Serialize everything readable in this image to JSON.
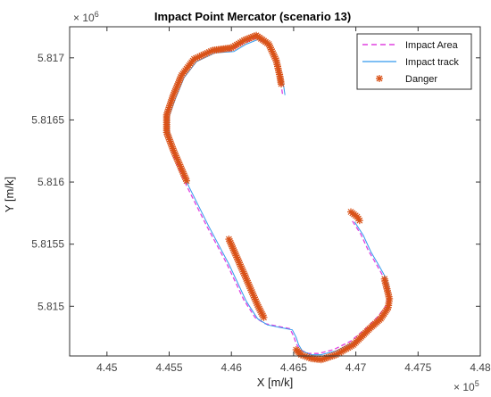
{
  "chart_data": {
    "type": "scatter",
    "title": "Impact Point Mercator (scenario 13)",
    "xlabel": "X [m/k]",
    "ylabel": "Y [m/k]",
    "x_exponent": "× 10",
    "x_exponent_power": "5",
    "y_exponent": "× 10",
    "y_exponent_power": "6",
    "xlim": [
      447700,
      448000
    ],
    "ylim": [
      5814600,
      5817250
    ],
    "x_ticks": [
      {
        "value": 445000,
        "label": "4.45"
      },
      {
        "value": 445500,
        "label": "4.455"
      },
      {
        "value": 446000,
        "label": "4.46"
      },
      {
        "value": 446500,
        "label": "4.465"
      },
      {
        "value": 447000,
        "label": "4.47"
      },
      {
        "value": 447500,
        "label": "4.475"
      },
      {
        "value": 448000,
        "label": "4.48"
      }
    ],
    "y_ticks": [
      {
        "value": 5815000,
        "label": "5.815"
      },
      {
        "value": 5815500,
        "label": "5.8155"
      },
      {
        "value": 5816000,
        "label": "5.816"
      },
      {
        "value": 5816500,
        "label": "5.8165"
      },
      {
        "value": 5817000,
        "label": "5.817"
      }
    ],
    "grid": false,
    "legend_position": "top-right",
    "legend": [
      {
        "name": "Impact Area",
        "style": "dashed",
        "color": "#e040e0"
      },
      {
        "name": "Impact track",
        "style": "solid",
        "color": "#3399ee"
      },
      {
        "name": "Danger",
        "style": "marker",
        "color": "#d95319"
      }
    ],
    "series": [
      {
        "name": "Impact Area",
        "color": "#e040e0",
        "style": "dashed",
        "x": [
          446410,
          446400,
          446360,
          446300,
          446200,
          446100,
          446000,
          445850,
          445700,
          445600,
          445530,
          445480,
          445480,
          445540,
          445640,
          445800,
          445960,
          446100,
          446190,
          446270,
          446370,
          446470,
          446500,
          446520,
          446550,
          446620,
          446700,
          446820,
          446960,
          447090,
          447180,
          447240,
          447260,
          447240,
          447220,
          447170,
          447100,
          447040,
          446970
        ],
        "y": [
          5816710,
          5816780,
          5816950,
          5817100,
          5817160,
          5817120,
          5817060,
          5817050,
          5816980,
          5816850,
          5816680,
          5816540,
          5816400,
          5816200,
          5815970,
          5815650,
          5815350,
          5815050,
          5814910,
          5814860,
          5814840,
          5814820,
          5814760,
          5814700,
          5814650,
          5814620,
          5814620,
          5814650,
          5814720,
          5814830,
          5814920,
          5815000,
          5815070,
          5815180,
          5815240,
          5815330,
          5815450,
          5815580,
          5815690
        ]
      },
      {
        "name": "Impact track",
        "color": "#3399ee",
        "style": "solid",
        "x": [
          446430,
          446420,
          446380,
          446320,
          446220,
          446120,
          446020,
          445870,
          445720,
          445620,
          445550,
          445500,
          445500,
          445560,
          445660,
          445820,
          445980,
          446120,
          446210,
          446290,
          446390,
          446490,
          446520,
          446540,
          446570,
          446640,
          446720,
          446840,
          446980,
          447110,
          447200,
          447260,
          447280,
          447260,
          447240,
          447190,
          447120,
          447060,
          446990
        ],
        "y": [
          5816700,
          5816770,
          5816940,
          5817090,
          5817150,
          5817110,
          5817050,
          5817040,
          5816970,
          5816840,
          5816670,
          5816530,
          5816390,
          5816190,
          5815960,
          5815640,
          5815340,
          5815040,
          5814900,
          5814850,
          5814830,
          5814810,
          5814750,
          5814690,
          5814640,
          5814610,
          5814610,
          5814640,
          5814710,
          5814820,
          5814910,
          5814990,
          5815060,
          5815170,
          5815230,
          5815320,
          5815440,
          5815570,
          5815680
        ]
      }
    ],
    "danger_segments": [
      {
        "x": [
          446400,
          446390,
          446360,
          446300,
          446200,
          446100,
          446000,
          445850,
          445700,
          445600,
          445530,
          445480,
          445480,
          445540,
          445640
        ],
        "y": [
          5816790,
          5816850,
          5816980,
          5817110,
          5817180,
          5817140,
          5817080,
          5817060,
          5816990,
          5816860,
          5816690,
          5816540,
          5816400,
          5816240,
          5816010
        ]
      },
      {
        "x": [
          445980,
          446120,
          446210,
          446260
        ],
        "y": [
          5815540,
          5815220,
          5815010,
          5814910
        ]
      },
      {
        "x": [
          446520,
          446560,
          446640,
          446720,
          446840,
          446980,
          447110,
          447200,
          447260,
          447270,
          447250,
          447230
        ],
        "y": [
          5814650,
          5814610,
          5814580,
          5814570,
          5814610,
          5814690,
          5814820,
          5814900,
          5814990,
          5815060,
          5815140,
          5815220
        ]
      },
      {
        "x": [
          446960,
          447010,
          447030
        ],
        "y": [
          5815760,
          5815720,
          5815690
        ]
      }
    ]
  }
}
